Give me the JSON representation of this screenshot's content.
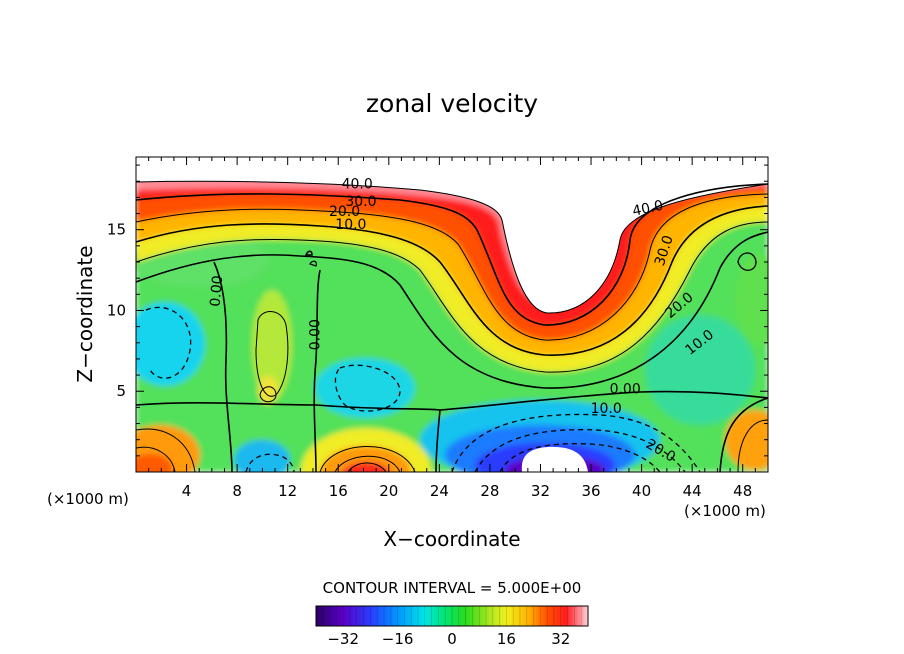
{
  "chart_data": {
    "type": "heatmap",
    "title": "zonal velocity",
    "xlabel": "X−coordinate",
    "ylabel": "Z−coordinate",
    "x_unit": "(×1000 m)",
    "y_unit": "(×1000 m)",
    "xlim": [
      0,
      50
    ],
    "ylim": [
      0,
      19.5
    ],
    "x_ticks": [
      4,
      8,
      12,
      16,
      20,
      24,
      28,
      32,
      36,
      40,
      44,
      48
    ],
    "y_ticks": [
      5,
      10,
      15
    ],
    "contour_interval_label": "CONTOUR INTERVAL = 5.000E+00",
    "colorbar": {
      "min": -40,
      "max": 40,
      "ticks": [
        "−32",
        "−16",
        "0",
        "16",
        "32"
      ]
    },
    "contour_labels": [
      {
        "text": "40.0",
        "x": 17.5,
        "y": 17.8
      },
      {
        "text": "30.0",
        "x": 17.8,
        "y": 16.7
      },
      {
        "text": "20.0",
        "x": 16.5,
        "y": 16.1
      },
      {
        "text": "10.0",
        "x": 17.0,
        "y": 15.3
      },
      {
        "text": "40.0",
        "x": 40.5,
        "y": 16.3
      },
      {
        "text": "30.0",
        "x": 41.8,
        "y": 13.7
      },
      {
        "text": "20.0",
        "x": 43.0,
        "y": 10.3
      },
      {
        "text": "10.0",
        "x": 44.6,
        "y": 8.0
      },
      {
        "text": "0.00",
        "x": 38.7,
        "y": 5.1
      },
      {
        "text": "10.0",
        "x": 37.2,
        "y": 3.9
      },
      {
        "text": "20.0",
        "x": 41.5,
        "y": 1.3
      },
      {
        "text": "0.00",
        "x": 6.4,
        "y": 11.2
      },
      {
        "text": "0.00",
        "x": 14.2,
        "y": 8.5
      }
    ],
    "notes_visible": "filled contour field with solid positive and dashed negative contour lines; white regions above ridge (centered near x=33) and in a small cavity near x=34, z=0"
  },
  "colors": {
    "background": "#ffffff",
    "colormap": [
      "#2a0064",
      "#5a00c8",
      "#2a3cff",
      "#0096ff",
      "#00e6e6",
      "#00e678",
      "#28dc1e",
      "#a0e61e",
      "#f0f01e",
      "#ffb400",
      "#ff5000",
      "#ff1e1e",
      "#ff8c96",
      "#ffd2dc"
    ]
  }
}
